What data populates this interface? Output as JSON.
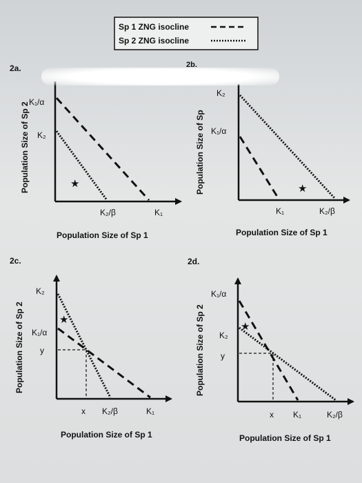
{
  "legend": {
    "sp1_label": "Sp 1 ZNG isocline",
    "sp2_label": "Sp 2 ZNG isocline"
  },
  "panels": {
    "a": {
      "title": "2a.",
      "ylabel": "Population Size of Sp 2",
      "xlabel": "Population Size of Sp 1",
      "y_ticks": [
        "K₁/α",
        "K₂"
      ],
      "x_ticks": [
        "K₂/β",
        "K₁"
      ],
      "marker": "★"
    },
    "b": {
      "title": "2b.",
      "ylabel": "Population Size of Sp",
      "xlabel": "Population Size of Sp 1",
      "y_ticks": [
        "K₂",
        "K₁/α"
      ],
      "x_ticks": [
        "K₁",
        "K₂/β"
      ],
      "marker": "★"
    },
    "c": {
      "title": "2c.",
      "ylabel": "Population Size of Sp 2",
      "xlabel": "Population Size of Sp 1",
      "y_ticks": [
        "K₂",
        "K₁/α",
        "y"
      ],
      "x_ticks": [
        "x",
        "K₂/β",
        "K₁"
      ],
      "marker": "★"
    },
    "d": {
      "title": "2d.",
      "ylabel": "Population Size of Sp 2",
      "xlabel": "Population Size of Sp 1",
      "y_ticks": [
        "K₁/α",
        "K₂",
        "y"
      ],
      "x_ticks": [
        "x",
        "K₁",
        "K₂/β"
      ],
      "marker": "★"
    }
  }
}
